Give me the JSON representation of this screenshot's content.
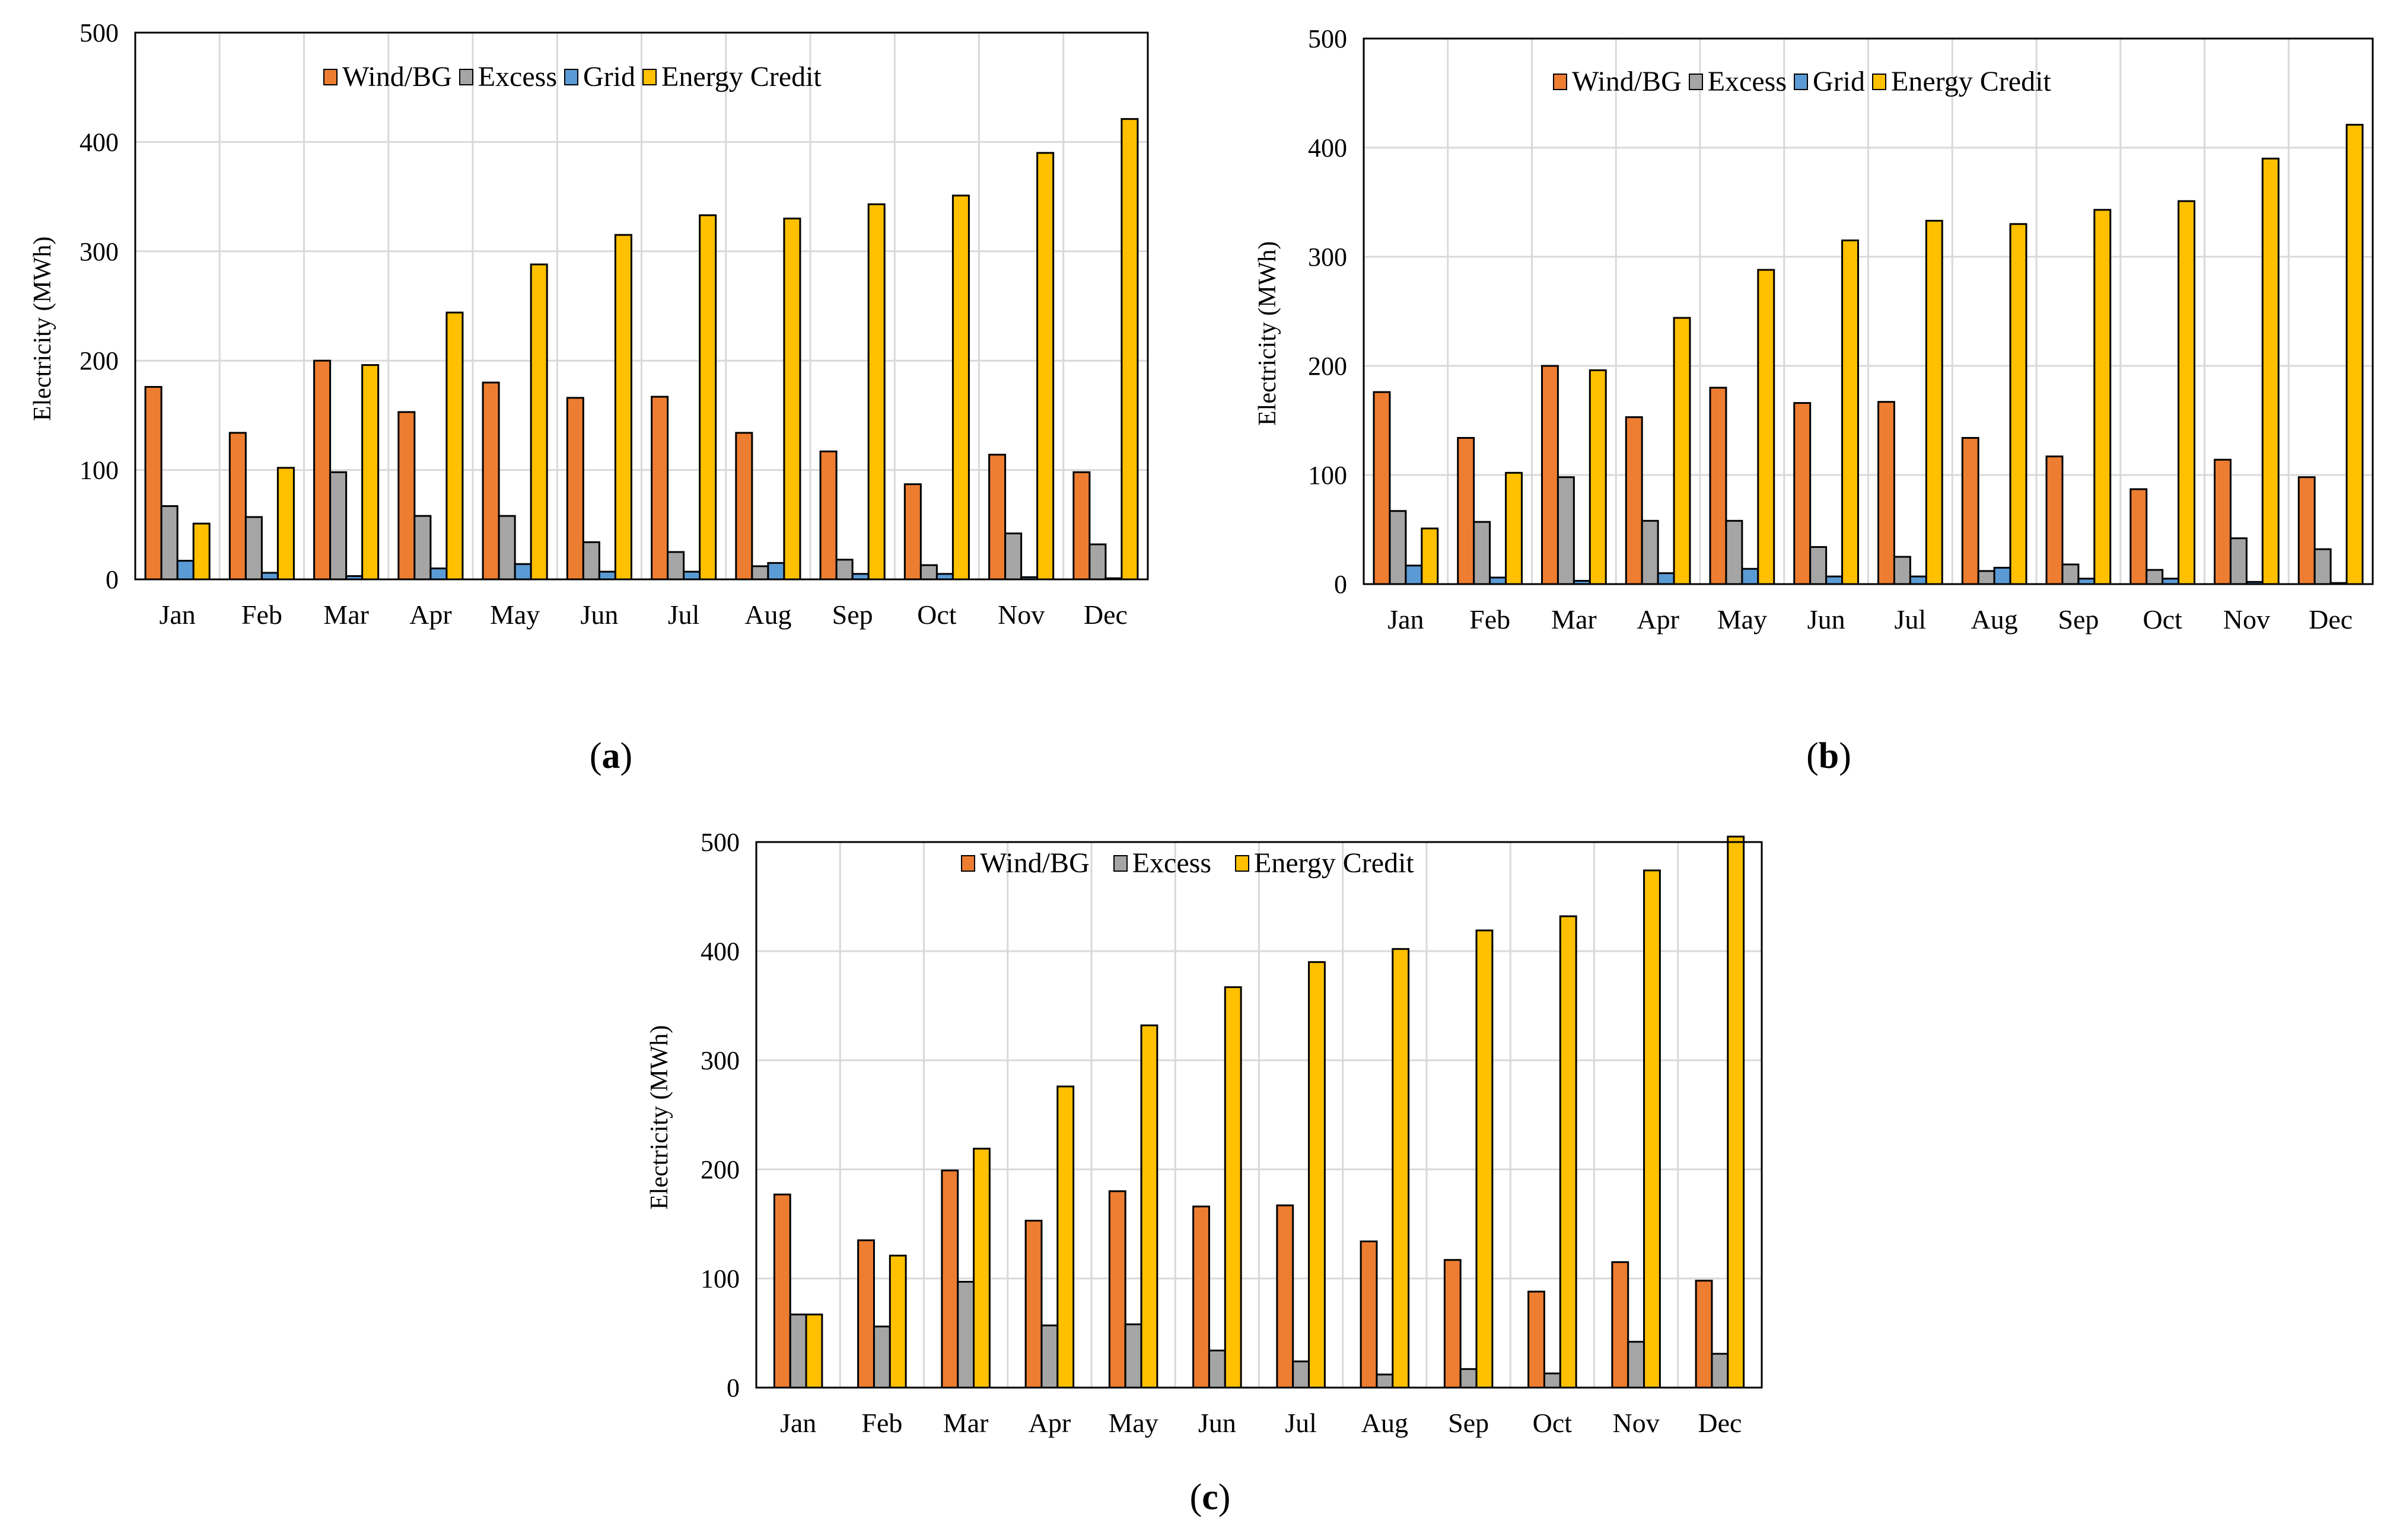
{
  "chart_data": [
    {
      "id": "a",
      "type": "bar",
      "panel_label": "a",
      "title": "",
      "xlabel": "",
      "ylabel": "Electricity (MWh)",
      "ylim": [
        0,
        500
      ],
      "yticks": [
        0,
        100,
        200,
        300,
        400,
        500
      ],
      "grid": true,
      "legend_position": "top-center",
      "categories": [
        "Jan",
        "Feb",
        "Mar",
        "Apr",
        "May",
        "Jun",
        "Jul",
        "Aug",
        "Sep",
        "Oct",
        "Nov",
        "Dec"
      ],
      "series": [
        {
          "name": "Wind/BG",
          "color": "#ED7D31",
          "values": [
            176,
            134,
            200,
            153,
            180,
            166,
            167,
            134,
            117,
            87,
            114,
            98
          ]
        },
        {
          "name": "Excess",
          "color": "#A5A5A5",
          "values": [
            67,
            57,
            98,
            58,
            58,
            34,
            25,
            12,
            18,
            13,
            42,
            32
          ]
        },
        {
          "name": "Grid",
          "color": "#5B9BD5",
          "values": [
            17,
            6,
            3,
            10,
            14,
            7,
            7,
            15,
            5,
            5,
            2,
            1
          ]
        },
        {
          "name": "Energy Credit",
          "color": "#FFC000",
          "values": [
            51,
            102,
            196,
            244,
            288,
            315,
            333,
            330,
            343,
            351,
            390,
            421
          ]
        }
      ]
    },
    {
      "id": "b",
      "type": "bar",
      "panel_label": "b",
      "title": "",
      "xlabel": "",
      "ylabel": "Electricity (MWh)",
      "ylim": [
        0,
        500
      ],
      "yticks": [
        0,
        100,
        200,
        300,
        400,
        500
      ],
      "grid": true,
      "legend_position": "top-center",
      "categories": [
        "Jan",
        "Feb",
        "Mar",
        "Apr",
        "May",
        "Jun",
        "Jul",
        "Aug",
        "Sep",
        "Oct",
        "Nov",
        "Dec"
      ],
      "series": [
        {
          "name": "Wind/BG",
          "color": "#ED7D31",
          "values": [
            176,
            134,
            200,
            153,
            180,
            166,
            167,
            134,
            117,
            87,
            114,
            98
          ]
        },
        {
          "name": "Excess",
          "color": "#A5A5A5",
          "values": [
            67,
            57,
            98,
            58,
            58,
            34,
            25,
            12,
            18,
            13,
            42,
            32
          ]
        },
        {
          "name": "Grid",
          "color": "#5B9BD5",
          "values": [
            17,
            6,
            3,
            10,
            14,
            7,
            7,
            15,
            5,
            5,
            2,
            1
          ]
        },
        {
          "name": "Energy Credit",
          "color": "#FFC000",
          "values": [
            51,
            102,
            196,
            244,
            288,
            315,
            333,
            330,
            343,
            351,
            390,
            421
          ]
        }
      ]
    },
    {
      "id": "c",
      "type": "bar",
      "panel_label": "c",
      "title": "",
      "xlabel": "",
      "ylabel": "Electricity (MWh)",
      "ylim": [
        0,
        500
      ],
      "yticks": [
        0,
        100,
        200,
        300,
        400,
        500
      ],
      "grid": true,
      "legend_position": "top-center",
      "categories": [
        "Jan",
        "Feb",
        "Mar",
        "Apr",
        "May",
        "Jun",
        "Jul",
        "Aug",
        "Sep",
        "Oct",
        "Nov",
        "Dec"
      ],
      "series": [
        {
          "name": "Wind/BG",
          "color": "#ED7D31",
          "values": [
            177,
            135,
            199,
            153,
            180,
            166,
            167,
            134,
            117,
            88,
            115,
            98
          ]
        },
        {
          "name": "Excess",
          "color": "#A5A5A5",
          "values": [
            67,
            56,
            97,
            57,
            58,
            34,
            24,
            12,
            17,
            13,
            42,
            31
          ]
        },
        {
          "name": "Energy Credit",
          "color": "#FFC000",
          "values": [
            67,
            121,
            219,
            276,
            332,
            367,
            390,
            402,
            419,
            432,
            474,
            505
          ]
        }
      ]
    }
  ]
}
